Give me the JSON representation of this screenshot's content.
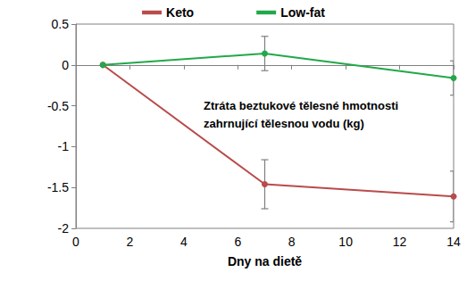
{
  "chart_data": {
    "type": "line",
    "annotation": "Ztráta beztukové tělesné hmotnosti\nzahrnující tělesnou vodu (kg)",
    "x_label": "Dny na dietě",
    "xlim": [
      0,
      14
    ],
    "xticks": [
      0,
      2,
      4,
      6,
      8,
      10,
      12,
      14
    ],
    "ylim": [
      -2,
      0.5
    ],
    "yticks": [
      -2,
      -1.5,
      -1,
      -0.5,
      0,
      0.5
    ],
    "grid": false,
    "legend": "top",
    "series": [
      {
        "name": "Keto",
        "color": "#b94b4b",
        "marker": "circle",
        "line_style": "solid",
        "x": [
          1,
          7,
          14
        ],
        "values": [
          0,
          -1.46,
          -1.61
        ],
        "errors": [
          null,
          0.3,
          0.31
        ]
      },
      {
        "name": "Low-fat",
        "color": "#22a84a",
        "marker": "circle",
        "line_style": "solid",
        "x": [
          1,
          7,
          14
        ],
        "values": [
          0,
          0.14,
          -0.16
        ],
        "errors": [
          null,
          0.21,
          0.21
        ]
      }
    ]
  }
}
